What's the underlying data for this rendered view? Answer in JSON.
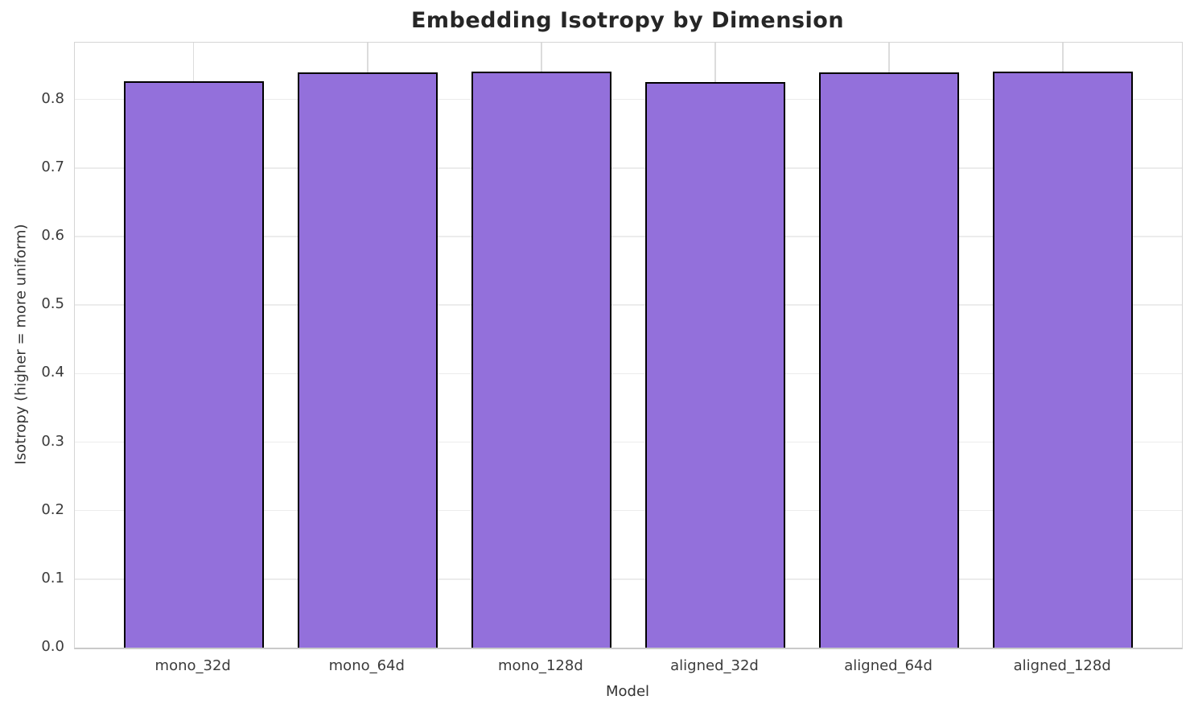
{
  "chart_data": {
    "type": "bar",
    "title": "Embedding Isotropy by Dimension",
    "xlabel": "Model",
    "ylabel": "Isotropy (higher = more uniform)",
    "categories": [
      "mono_32d",
      "mono_64d",
      "mono_128d",
      "aligned_32d",
      "aligned_64d",
      "aligned_128d"
    ],
    "values": [
      0.827,
      0.839,
      0.841,
      0.826,
      0.839,
      0.841
    ],
    "ylim": [
      0,
      0.883
    ],
    "yticks": [
      0.0,
      0.1,
      0.2,
      0.3,
      0.4,
      0.5,
      0.6,
      0.7,
      0.8
    ],
    "ytick_format_decimals": 1,
    "grid": true,
    "legend": "none",
    "bar_color": "#9370DB",
    "bar_edge_color": "#000000",
    "background_color": "#ffffff",
    "text_color": "#3b3b3b"
  }
}
